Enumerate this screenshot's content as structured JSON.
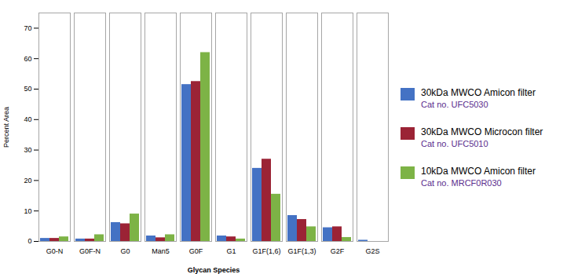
{
  "chart_data": {
    "type": "bar",
    "categories": [
      "G0-N",
      "G0F-N",
      "G0",
      "Man5",
      "G0F",
      "G1",
      "G1F(1,6)",
      "G1F(1,3)",
      "G2F",
      "G2S"
    ],
    "series": [
      {
        "name": "30kDa MWCO Amicon filter",
        "sublabel": "Cat no. UFC5030",
        "color": "#4472C4",
        "values": [
          1.0,
          0.8,
          6.2,
          1.8,
          51.5,
          1.8,
          24.0,
          8.5,
          4.5,
          0.4
        ]
      },
      {
        "name": "30kDa MWCO Microcon filter",
        "sublabel": "Cat no. UFC5010",
        "color": "#9B2335",
        "values": [
          1.0,
          0.8,
          5.8,
          1.2,
          52.5,
          1.5,
          27.0,
          7.2,
          4.8,
          0.0
        ]
      },
      {
        "name": "10kDa MWCO Amicon filter",
        "sublabel": "Cat no. MRCF0R030",
        "color": "#7DB346",
        "values": [
          1.5,
          2.2,
          9.0,
          2.2,
          62.0,
          0.8,
          15.5,
          4.8,
          1.3,
          0.0
        ]
      }
    ],
    "sublabel_color": "#5B2D8E",
    "xlabel": "Glycan Species",
    "ylabel": "Percent Area",
    "ylim": [
      0,
      75
    ],
    "yticks": [
      0,
      10,
      20,
      30,
      40,
      50,
      60,
      70
    ],
    "grid": false,
    "legend": "right"
  }
}
